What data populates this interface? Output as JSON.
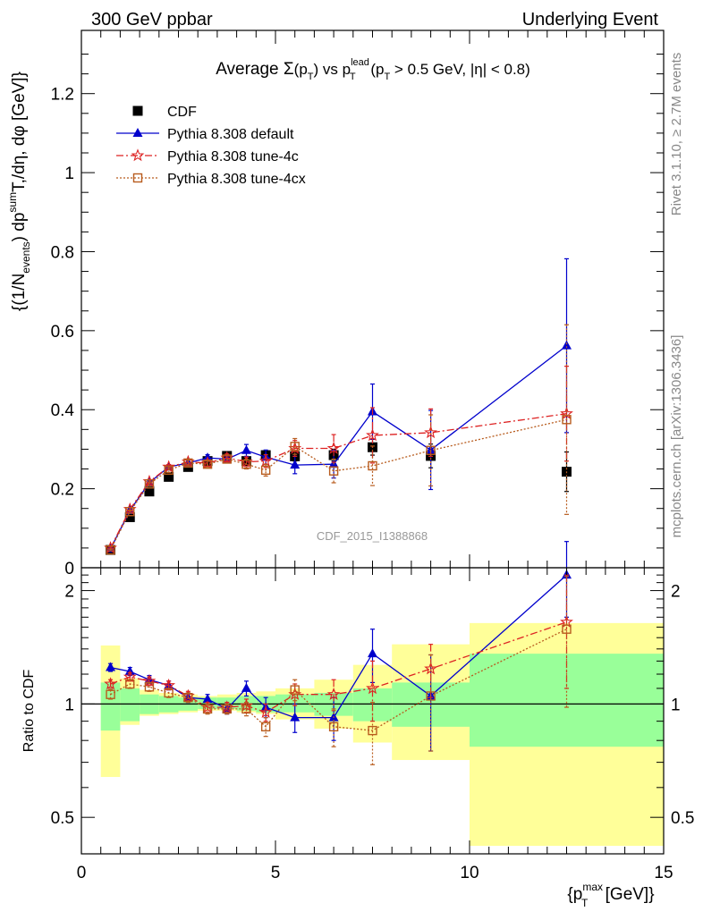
{
  "header": {
    "left": "300 GeV ppbar",
    "right": "Underlying Event"
  },
  "side_labels": {
    "rivet": "Rivet 3.1.10, ≥ 2.7M events",
    "mcplots": "mcplots.cern.ch [arXiv:1306.3436]"
  },
  "chart_data": [
    {
      "type": "scatter",
      "title_parts": {
        "prefix": "Average ",
        "sigma": "Σ",
        "p_open": "(p",
        "sub_t": "T",
        "p_close": ")",
        "vs": " vs p",
        "sup_lead": "lead",
        "sub_t2": "T",
        "range_open": " (p",
        "sub_t3": "T",
        "cuts": " > 0.5 GeV, |η| < 0.8)"
      },
      "ylabel_parts": {
        "open": "{(1/N",
        "sub_events": "events",
        "mid": ") dp",
        "sup_sum": "sum",
        "tail": "T,/dη, dφ [GeV]}"
      },
      "xlabel_parts": {
        "open": "{p",
        "sup_max": "max",
        "sub_t": "T",
        "tail": " [GeV]}"
      },
      "watermark": "CDF_2015_I1388868",
      "xlim": [
        0,
        15
      ],
      "ylim": [
        0,
        1.36
      ],
      "yticks": [
        "0",
        "0.2",
        "0.4",
        "0.6",
        "0.8",
        "1",
        "1.2"
      ],
      "xticks": [
        "0",
        "5",
        "10",
        "15"
      ],
      "legend": {
        "position": "top-left"
      },
      "series": [
        {
          "name": "CDF",
          "color": "#000000",
          "marker": "filled-square",
          "x": [
            0.75,
            1.25,
            1.75,
            2.25,
            2.75,
            3.25,
            3.75,
            4.25,
            4.75,
            5.5,
            6.5,
            7.5,
            9.0,
            12.5
          ],
          "y": [
            0.045,
            0.128,
            0.193,
            0.23,
            0.255,
            0.27,
            0.283,
            0.27,
            0.285,
            0.282,
            0.285,
            0.305,
            0.283,
            0.243
          ],
          "yerr": [
            0.003,
            0.005,
            0.006,
            0.007,
            0.007,
            0.008,
            0.008,
            0.009,
            0.01,
            0.012,
            0.015,
            0.02,
            0.03,
            0.05
          ]
        },
        {
          "name": "Pythia 8.308 default",
          "color": "#0000cc",
          "marker": "filled-triangle",
          "line": "solid",
          "x": [
            0.75,
            1.25,
            1.75,
            2.25,
            2.75,
            3.25,
            3.75,
            4.25,
            4.75,
            5.5,
            6.5,
            7.5,
            9.0,
            12.5
          ],
          "y": [
            0.048,
            0.145,
            0.215,
            0.255,
            0.265,
            0.278,
            0.275,
            0.297,
            0.28,
            0.26,
            0.262,
            0.395,
            0.298,
            0.562
          ],
          "yerr": [
            0.002,
            0.004,
            0.005,
            0.006,
            0.007,
            0.008,
            0.01,
            0.015,
            0.018,
            0.022,
            0.035,
            0.07,
            0.1,
            0.22
          ]
        },
        {
          "name": "Pythia 8.308 tune-4c",
          "color": "#dd2222",
          "marker": "open-star",
          "line": "dash-dot",
          "x": [
            0.75,
            1.25,
            1.75,
            2.25,
            2.75,
            3.25,
            3.75,
            4.25,
            4.75,
            5.5,
            6.5,
            7.5,
            9.0,
            12.5
          ],
          "y": [
            0.05,
            0.148,
            0.218,
            0.255,
            0.268,
            0.265,
            0.278,
            0.268,
            0.27,
            0.302,
            0.302,
            0.335,
            0.342,
            0.39
          ],
          "yerr": [
            0.002,
            0.004,
            0.005,
            0.006,
            0.007,
            0.008,
            0.01,
            0.012,
            0.016,
            0.02,
            0.035,
            0.07,
            0.06,
            0.12
          ]
        },
        {
          "name": "Pythia 8.308 tune-4cx",
          "color": "#b85c1e",
          "marker": "open-square",
          "line": "dotted",
          "x": [
            0.75,
            1.25,
            1.75,
            2.25,
            2.75,
            3.25,
            3.75,
            4.25,
            4.75,
            5.5,
            6.5,
            7.5,
            9.0,
            12.5
          ],
          "y": [
            0.045,
            0.142,
            0.212,
            0.247,
            0.265,
            0.262,
            0.275,
            0.262,
            0.247,
            0.307,
            0.245,
            0.258,
            0.297,
            0.375
          ],
          "yerr": [
            0.002,
            0.004,
            0.005,
            0.006,
            0.007,
            0.008,
            0.01,
            0.012,
            0.015,
            0.02,
            0.03,
            0.05,
            0.09,
            0.24
          ]
        }
      ]
    },
    {
      "type": "scatter",
      "ylabel": "Ratio to CDF",
      "ylim": [
        0.4,
        2.3
      ],
      "yscale": "log",
      "yticks": [
        "0.5",
        "1",
        "2"
      ],
      "xlim": [
        0,
        15
      ],
      "reference": 1,
      "bands": {
        "edges": [
          0.5,
          1.0,
          1.5,
          2.0,
          2.5,
          3.0,
          3.5,
          4.0,
          4.5,
          5.0,
          6.0,
          7.0,
          8.0,
          10.0,
          15.0
        ],
        "inner_color": "#99ff99",
        "inner_lo": [
          0.85,
          0.9,
          0.94,
          0.95,
          0.96,
          0.97,
          0.97,
          0.96,
          0.95,
          0.95,
          0.93,
          0.9,
          0.87,
          0.77
        ],
        "inner_hi": [
          1.14,
          1.1,
          1.06,
          1.05,
          1.04,
          1.04,
          1.04,
          1.05,
          1.05,
          1.06,
          1.07,
          1.1,
          1.14,
          1.36
        ],
        "outer_color": "#ffff99",
        "outer_lo": [
          0.64,
          0.88,
          0.93,
          0.94,
          0.95,
          0.96,
          0.96,
          0.95,
          0.94,
          0.91,
          0.86,
          0.79,
          0.71,
          0.42
        ],
        "outer_hi": [
          1.43,
          1.17,
          1.09,
          1.07,
          1.06,
          1.05,
          1.06,
          1.07,
          1.08,
          1.1,
          1.16,
          1.27,
          1.44,
          1.64
        ]
      },
      "series": [
        {
          "name": "Pythia 8.308 default",
          "color": "#0000cc",
          "marker": "filled-triangle",
          "line": "solid",
          "x": [
            0.75,
            1.25,
            1.75,
            2.25,
            2.75,
            3.25,
            3.75,
            4.25,
            4.75,
            5.5,
            6.5,
            7.5,
            9.0,
            12.5
          ],
          "y": [
            1.25,
            1.22,
            1.16,
            1.12,
            1.04,
            1.03,
            0.97,
            1.1,
            0.98,
            0.92,
            0.92,
            1.36,
            1.05,
            2.2
          ],
          "yerr": [
            0.03,
            0.03,
            0.03,
            0.03,
            0.03,
            0.03,
            0.03,
            0.05,
            0.06,
            0.08,
            0.12,
            0.22,
            0.3,
            0.5
          ]
        },
        {
          "name": "Pythia 8.308 tune-4c",
          "color": "#dd2222",
          "marker": "open-star",
          "line": "dash-dot",
          "x": [
            0.75,
            1.25,
            1.75,
            2.25,
            2.75,
            3.25,
            3.75,
            4.25,
            4.75,
            5.5,
            6.5,
            7.5,
            9.0,
            12.5
          ],
          "y": [
            1.13,
            1.18,
            1.15,
            1.12,
            1.05,
            0.98,
            0.98,
            0.99,
            0.95,
            1.06,
            1.06,
            1.1,
            1.24,
            1.65
          ],
          "yerr": [
            0.03,
            0.03,
            0.03,
            0.03,
            0.03,
            0.03,
            0.03,
            0.04,
            0.05,
            0.07,
            0.1,
            0.2,
            0.2,
            0.55
          ]
        },
        {
          "name": "Pythia 8.308 tune-4cx",
          "color": "#b85c1e",
          "marker": "open-square",
          "line": "dotted",
          "x": [
            0.75,
            1.25,
            1.75,
            2.25,
            2.75,
            3.25,
            3.75,
            4.25,
            4.75,
            5.5,
            6.5,
            7.5,
            9.0,
            12.5
          ],
          "y": [
            1.06,
            1.13,
            1.11,
            1.07,
            1.04,
            0.97,
            0.97,
            0.97,
            0.87,
            1.09,
            0.87,
            0.85,
            1.05,
            1.58
          ],
          "yerr": [
            0.03,
            0.03,
            0.03,
            0.03,
            0.03,
            0.03,
            0.03,
            0.04,
            0.05,
            0.07,
            0.1,
            0.16,
            0.3,
            0.6
          ]
        }
      ]
    }
  ]
}
